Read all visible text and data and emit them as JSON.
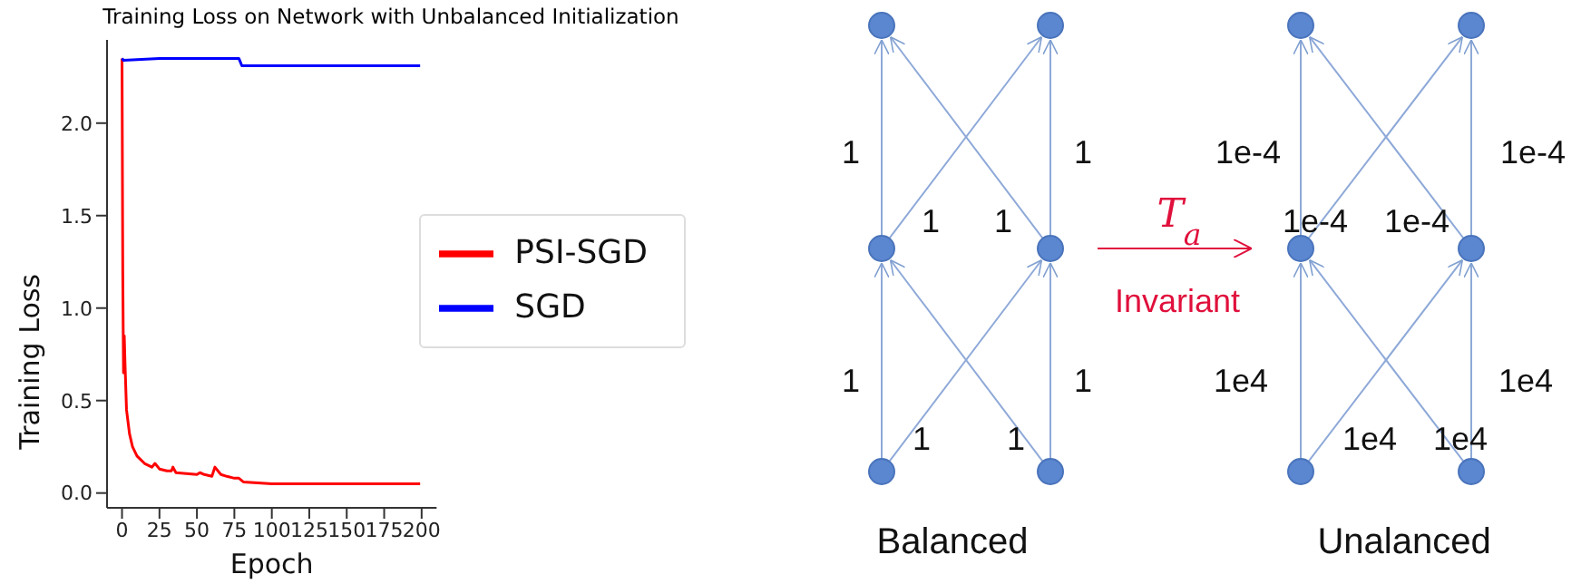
{
  "chart_data": [
    {
      "type": "line",
      "title": "Training Loss on Network with Unbalanced Initialization",
      "xlabel": "Epoch",
      "ylabel": "Training Loss",
      "xlim": [
        -10,
        210
      ],
      "xticks": [
        0,
        25,
        50,
        75,
        100,
        125,
        150,
        175,
        200
      ],
      "ylim": [
        -0.08,
        2.45
      ],
      "yticks": [
        {
          "value": 0,
          "label": "0.0"
        },
        0.5,
        {
          "value": 1,
          "label": "1.0"
        },
        1.5,
        {
          "value": 2,
          "label": "2.0"
        }
      ],
      "legend": "right",
      "series": [
        {
          "name": "PSI-SGD",
          "color": "#ff0000",
          "x": [
            0,
            0.5,
            1,
            1.5,
            2,
            3,
            5,
            7,
            10,
            15,
            20,
            22,
            25,
            30,
            33,
            34,
            36,
            50,
            52,
            55,
            60,
            62,
            66,
            70,
            75,
            78,
            81,
            100,
            150,
            199
          ],
          "values": [
            2.35,
            1.2,
            0.65,
            0.85,
            0.7,
            0.45,
            0.32,
            0.25,
            0.2,
            0.16,
            0.14,
            0.16,
            0.13,
            0.12,
            0.12,
            0.14,
            0.11,
            0.1,
            0.11,
            0.1,
            0.09,
            0.14,
            0.1,
            0.09,
            0.08,
            0.08,
            0.06,
            0.05,
            0.05,
            0.05
          ]
        },
        {
          "name": "SGD",
          "color": "#0000ff",
          "x": [
            0,
            1,
            25,
            50,
            78,
            80,
            125,
            199
          ],
          "values": [
            2.35,
            2.34,
            2.35,
            2.35,
            2.35,
            2.31,
            2.31,
            2.31
          ]
        }
      ]
    },
    {
      "type": "other",
      "annotations": [
        "1",
        "1",
        "1",
        "1",
        "1",
        "1",
        "1",
        "1",
        "1e-4",
        "1e-4",
        "1e-4",
        "1e-4",
        "1e4",
        "1e4",
        "1e4",
        "1e4",
        "T$_{a}$",
        "Invariant",
        "Balanced",
        "Unalanced"
      ]
    }
  ]
}
